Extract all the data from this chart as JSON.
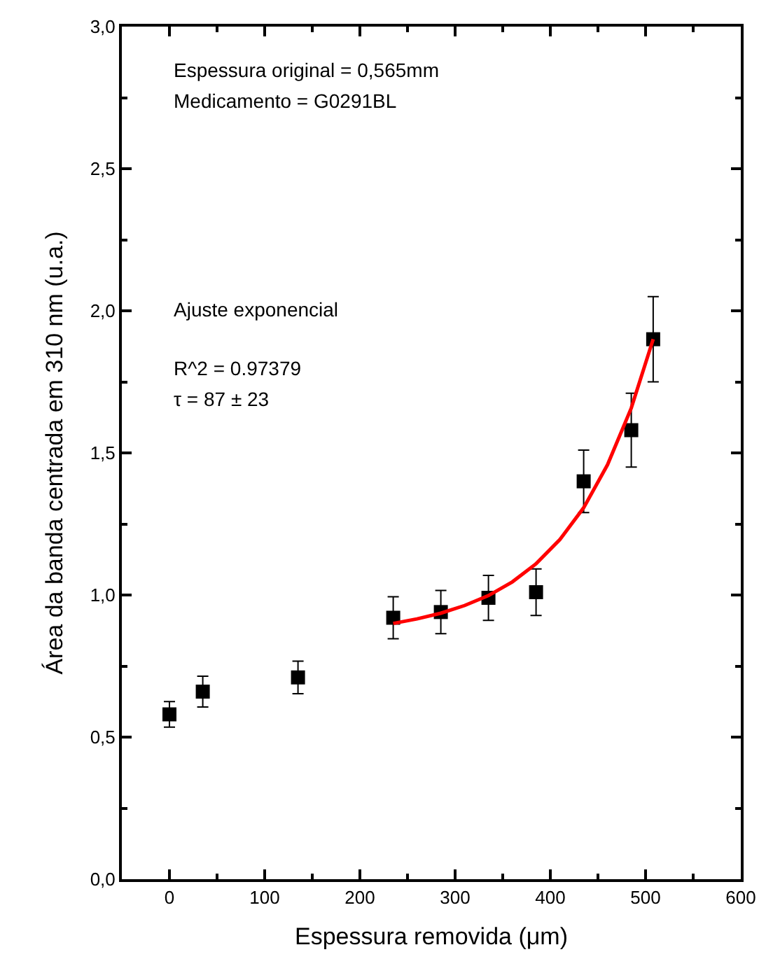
{
  "chart_data": {
    "type": "scatter",
    "xlabel": "Espessura removida (μm)",
    "ylabel": "Área da banda centrada em 310 nm (u.a.)",
    "annotations": [
      "Espessura original = 0,565mm",
      "Medicamento = G0291BL",
      "Ajuste exponencial",
      "R^2 = 0.97379",
      "τ = 87 ± 23"
    ],
    "xlim": [
      -50,
      600
    ],
    "ylim": [
      0,
      3
    ],
    "xticks": [
      0,
      100,
      200,
      300,
      400,
      500,
      600,
      {
        "value": 50,
        "label": null
      },
      {
        "value": 150,
        "label": null
      },
      {
        "value": 250,
        "label": null
      },
      {
        "value": 350,
        "label": null
      },
      {
        "value": 450,
        "label": null
      },
      {
        "value": 550,
        "label": null
      }
    ],
    "yticks": [
      {
        "value": 0,
        "label": "0,0"
      },
      {
        "value": 0.5,
        "label": "0,5"
      },
      {
        "value": 1,
        "label": "1,0"
      },
      {
        "value": 1.5,
        "label": "1,5"
      },
      {
        "value": 2,
        "label": "2,0"
      },
      {
        "value": 2.5,
        "label": "2,5"
      },
      {
        "value": 3,
        "label": "3,0"
      },
      {
        "value": 0.25,
        "label": null
      },
      {
        "value": 0.75,
        "label": null
      },
      {
        "value": 1.25,
        "label": null
      },
      {
        "value": 1.75,
        "label": null
      },
      {
        "value": 2.25,
        "label": null
      },
      {
        "value": 2.75,
        "label": null
      }
    ],
    "series": [
      {
        "color": "#000000",
        "marker": "square",
        "x": [
          0,
          35,
          135,
          235,
          285,
          335,
          385,
          435,
          485,
          508
        ],
        "values": [
          0.58,
          0.66,
          0.71,
          0.92,
          0.94,
          0.99,
          1.01,
          1.4,
          1.58,
          1.9
        ],
        "errors": [
          0.045,
          0.054,
          0.057,
          0.074,
          0.076,
          0.079,
          0.082,
          0.11,
          0.13,
          0.15
        ]
      },
      {
        "type": "line",
        "color": "#ff0000",
        "line_style": "solid",
        "marker": "none",
        "x": [
          235,
          260,
          285,
          310,
          335,
          360,
          385,
          410,
          435,
          460,
          485,
          508
        ],
        "values": [
          0.9,
          0.916,
          0.936,
          0.963,
          0.998,
          1.046,
          1.11,
          1.195,
          1.307,
          1.458,
          1.658,
          1.9
        ]
      }
    ]
  }
}
